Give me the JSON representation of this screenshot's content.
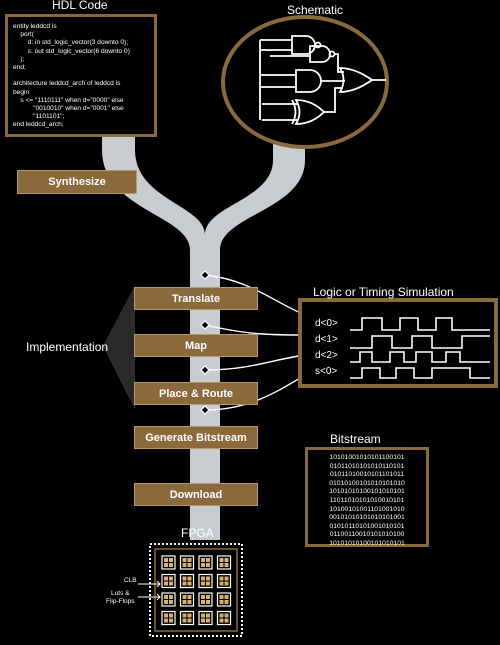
{
  "headings": {
    "hdl_code": "HDL Code",
    "schematic": "Schematic",
    "simulation": "Logic or Timing Simulation",
    "implementation": "Implementation",
    "bitstream": "Bitstream",
    "fpga": "FPGA"
  },
  "hdl_code_lines": [
    "entity leddcd is",
    "    port(",
    "        d: in std_logic_vector(3 downto 0);",
    "        s: out std_logic_vector(6 downto 0)",
    "    );",
    "end;",
    "",
    "architecture leddcd_arch of leddcd is",
    "begin",
    "    s <= \"1110111\" when d=\"0000\" else",
    "           \"0010010\" when d=\"0001\" else",
    "           \"1101101\";",
    "end leddcd_arch;"
  ],
  "stages": {
    "synthesize": "Synthesize",
    "translate": "Translate",
    "map": "Map",
    "place_route": "Place & Route",
    "generate_bitstream": "Generate Bitstream",
    "download": "Download"
  },
  "signals": [
    "d<0>",
    "d<1>",
    "d<2>",
    "s<0>"
  ],
  "bitstream_lines": [
    "10101001010101100101",
    "01011010101010110101",
    "01011010010101101011",
    "01010100101010101010",
    "10101010100101010101",
    "11011010101010010101",
    "10100101001101001010",
    "00101010101010101001",
    "01010110101001010101",
    "01100110010101010100",
    "10101010100101010101"
  ],
  "fpga_labels": {
    "clb": "CLB",
    "luts": "Luts &\nFlip-Flops"
  },
  "colors": {
    "stage_fill": "#8a6a3c",
    "stage_border": "#b89a6a",
    "pipe": "#c8ccd0",
    "panel_border": "#8a6a3c"
  }
}
